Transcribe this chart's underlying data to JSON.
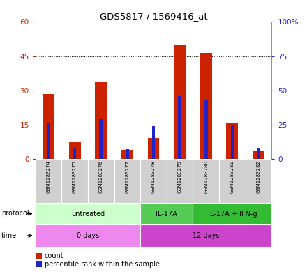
{
  "title": "GDS5817 / 1569416_at",
  "samples": [
    "GSM1283274",
    "GSM1283275",
    "GSM1283276",
    "GSM1283277",
    "GSM1283278",
    "GSM1283279",
    "GSM1283280",
    "GSM1283281",
    "GSM1283282"
  ],
  "counts": [
    28.5,
    7.5,
    33.5,
    4.0,
    9.0,
    50.0,
    46.5,
    15.5,
    3.5
  ],
  "percentiles": [
    26.5,
    8.0,
    29.0,
    7.0,
    24.0,
    46.0,
    43.0,
    25.0,
    8.0
  ],
  "left_ylim": [
    0,
    60
  ],
  "right_ylim": [
    0,
    100
  ],
  "left_yticks": [
    0,
    15,
    30,
    45,
    60
  ],
  "right_yticks": [
    0,
    25,
    50,
    75,
    100
  ],
  "left_yticklabels": [
    "0",
    "15",
    "30",
    "45",
    "60"
  ],
  "right_yticklabels": [
    "0",
    "25",
    "50",
    "75",
    "100%"
  ],
  "bar_color": "#cc2200",
  "percentile_color": "#2222cc",
  "protocol_labels": [
    {
      "text": "untreated",
      "start": 0,
      "end": 4,
      "color": "#ccffcc"
    },
    {
      "text": "IL-17A",
      "start": 4,
      "end": 6,
      "color": "#55cc55"
    },
    {
      "text": "IL-17A + IFN-g",
      "start": 6,
      "end": 9,
      "color": "#33bb33"
    }
  ],
  "time_labels": [
    {
      "text": "0 days",
      "start": 0,
      "end": 4,
      "color": "#ee88ee"
    },
    {
      "text": "12 days",
      "start": 4,
      "end": 9,
      "color": "#cc44cc"
    }
  ],
  "background_color": "#ffffff",
  "plot_bg_color": "#ffffff",
  "sample_bg_color": "#d0d0d0"
}
